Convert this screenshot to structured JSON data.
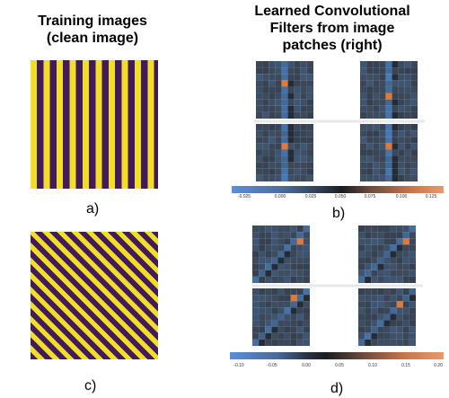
{
  "left": {
    "title_line1": "Training images",
    "title_line2": "(clean image)",
    "label_a": "a)",
    "label_c": "c)"
  },
  "right": {
    "title_line1": "Learned Convolutional",
    "title_line2": "Filters from image",
    "title_line3": "patches (right)",
    "label_b": "b)",
    "label_d": "d)"
  },
  "colorbar_b": {
    "ticks": [
      "-0.025",
      "0.000",
      "0.025",
      "0.050",
      "0.075",
      "0.100",
      "0.125"
    ]
  },
  "colorbar_d": {
    "ticks": [
      "-0.10",
      "-0.05",
      "0.00",
      "0.05",
      "0.10",
      "0.15",
      "0.20"
    ]
  },
  "colors": {
    "yellow": "#f1df27",
    "purple": "#431a5c",
    "cold": "#4a8fe0",
    "neutral": "#3c4a5c",
    "hot": "#e07a3a"
  }
}
